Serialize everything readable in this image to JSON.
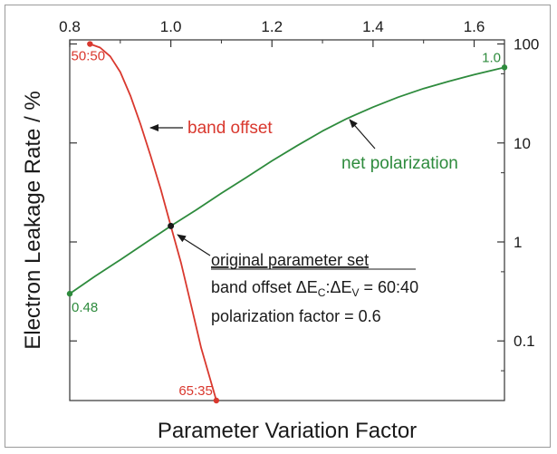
{
  "chart_data": {
    "type": "line",
    "xlabel": "Parameter Variation Factor",
    "ylabel": "Electron Leakage Rate / %",
    "x_ticks": [
      "0.8",
      "1.0",
      "1.2",
      "1.4",
      "1.6"
    ],
    "y_ticks": [
      "0.1",
      "1",
      "10",
      "100"
    ],
    "xlim": [
      0.8,
      1.66
    ],
    "ylim": [
      0.025,
      110
    ],
    "y_scale": "log",
    "x_axis_position": "top",
    "y_axis_position": "right",
    "grid": false,
    "series": [
      {
        "name": "band offset",
        "color": "#d9382e",
        "x": [
          0.84,
          0.86,
          0.88,
          0.9,
          0.92,
          0.94,
          0.96,
          0.98,
          1.0,
          1.02,
          1.04,
          1.06,
          1.09
        ],
        "y": [
          100,
          92,
          75,
          52,
          30,
          15.5,
          7.4,
          3.4,
          1.45,
          0.62,
          0.23,
          0.085,
          0.025
        ]
      },
      {
        "name": "net polarization",
        "color": "#2e8b3d",
        "x": [
          0.8,
          0.85,
          0.9,
          0.95,
          1.0,
          1.05,
          1.1,
          1.15,
          1.2,
          1.25,
          1.3,
          1.35,
          1.4,
          1.45,
          1.5,
          1.55,
          1.6,
          1.66
        ],
        "y": [
          0.3,
          0.45,
          0.66,
          0.98,
          1.45,
          2.1,
          3.1,
          4.5,
          6.6,
          9.4,
          13.2,
          17.8,
          23,
          29,
          35.5,
          42,
          49,
          58
        ]
      }
    ],
    "point_labels": [
      {
        "text": "50:50",
        "color": "#d9382e",
        "x": 0.84,
        "y": 100
      },
      {
        "text": "65:35",
        "color": "#d9382e",
        "x": 1.09,
        "y": 0.025
      },
      {
        "text": "0.48",
        "color": "#2e8b3d",
        "x": 0.8,
        "y": 0.3
      },
      {
        "text": "1.0",
        "color": "#2e8b3d",
        "x": 1.66,
        "y": 58
      }
    ],
    "annotations": {
      "band_offset_label": "band offset",
      "net_polarization_label": "net polarization",
      "original_title": "original parameter set",
      "line2_prefix": "band offset ",
      "delta1": "ΔE",
      "sub1": "C",
      "colon": ":",
      "delta2": "ΔE",
      "sub2": "V",
      "line2_suffix": " = 60:40",
      "line3": "polarization factor = 0.6"
    },
    "intersection": {
      "x": 1.0,
      "y": 1.45
    }
  }
}
